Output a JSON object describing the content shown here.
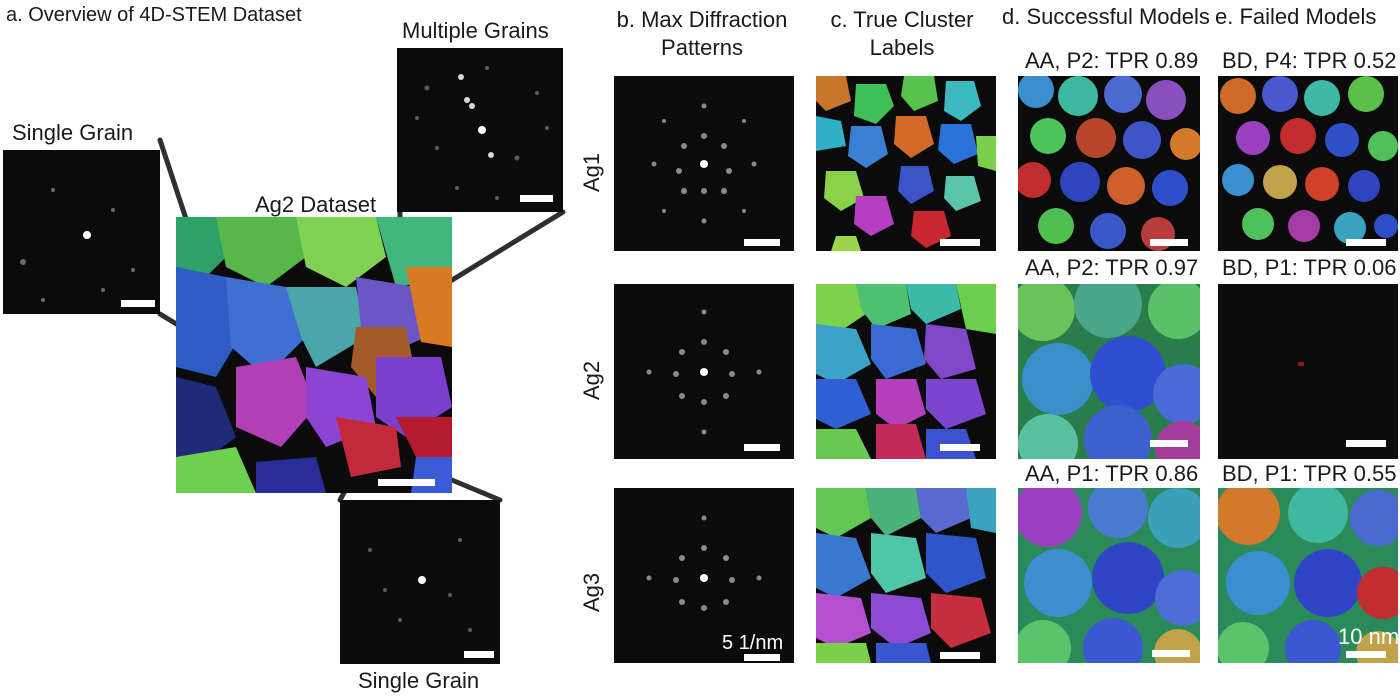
{
  "panel_a": {
    "title": "a. Overview of 4D-STEM Dataset",
    "dataset_label": "Ag2 Dataset",
    "single_grain_top": "Single Grain",
    "multiple_grains": "Multiple Grains",
    "single_grain_bottom": "Single Grain"
  },
  "columns": {
    "b_line1": "b. Max Diffraction",
    "b_line2": "Patterns",
    "c_line1": "c. True Cluster",
    "c_line2": "Labels",
    "d": "d. Successful Models",
    "e": "e. Failed Models"
  },
  "rows": [
    "Ag1",
    "Ag2",
    "Ag3"
  ],
  "successful_models": [
    "AA, P2: TPR 0.89",
    "AA, P2: TPR 0.97",
    "AA, P1: TPR 0.86"
  ],
  "failed_models": [
    "BD, P4: TPR 0.52",
    "BD, P1: TPR 0.06",
    "BD, P1: TPR 0.55"
  ],
  "scalebars": {
    "diffraction": "5 1/nm",
    "real_space": "10 nm"
  },
  "colors": {
    "background": "#ffffff",
    "panel_background": "#0b0b0b",
    "connector": "#2f2f2f",
    "scalebar": "#ffffff"
  }
}
